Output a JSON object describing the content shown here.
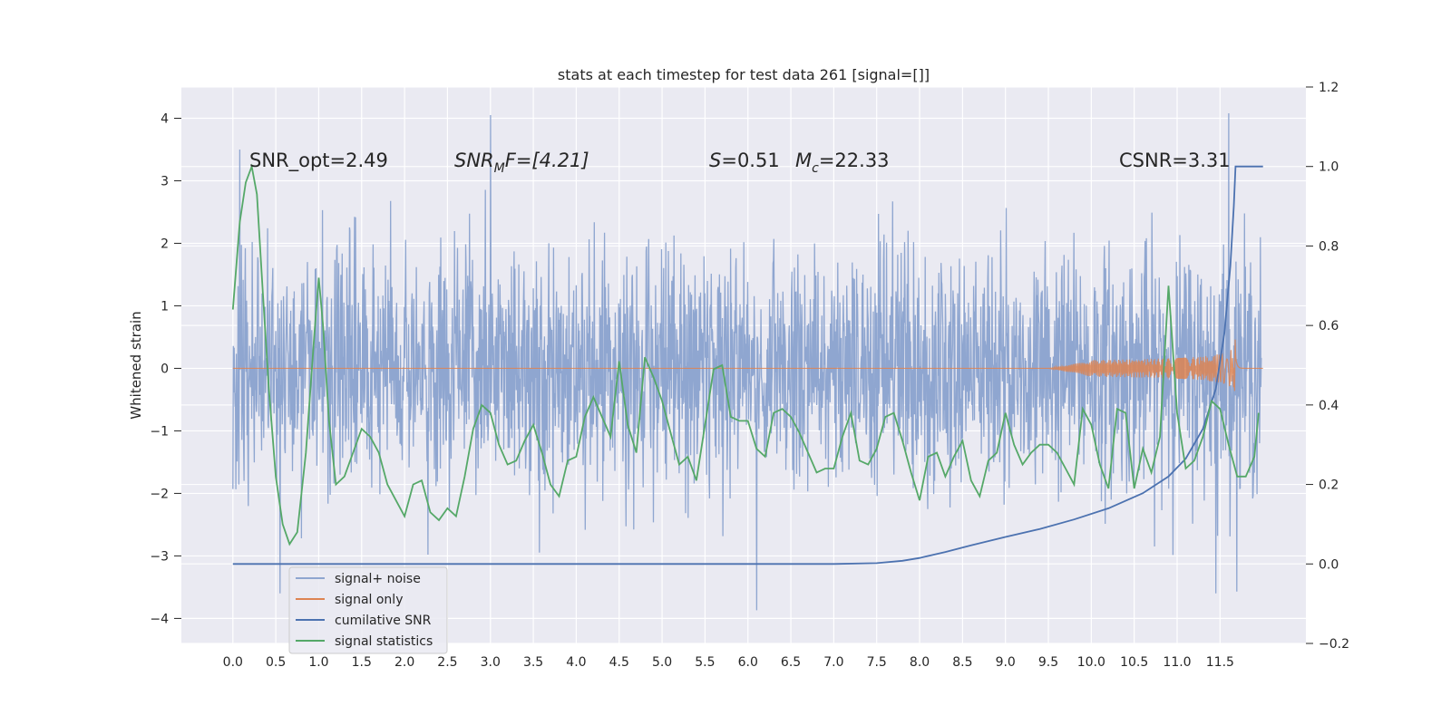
{
  "chart_data": {
    "type": "line",
    "title": "stats at each timestep for test data 261 [signal=[]]",
    "ylabel": "Whitened strain",
    "xlabel": "",
    "xlim": [
      -0.6,
      12.5
    ],
    "ylim": [
      -4.4,
      4.5
    ],
    "y2lim": [
      -0.2,
      1.2
    ],
    "grid": true,
    "legend_position": "lower-left",
    "xticks": [
      "0.0",
      "0.5",
      "1.0",
      "1.5",
      "2.0",
      "2.5",
      "3.0",
      "3.5",
      "4.0",
      "4.5",
      "5.0",
      "5.5",
      "6.0",
      "6.5",
      "7.0",
      "7.5",
      "8.0",
      "8.5",
      "9.0",
      "9.5",
      "10.0",
      "10.5",
      "11.0",
      "11.5"
    ],
    "yticks": [
      "4",
      "3",
      "2",
      "1",
      "0",
      "−1",
      "−2",
      "−3",
      "−4"
    ],
    "y2ticks": [
      "1.2",
      "1.0",
      "0.8",
      "0.6",
      "0.4",
      "0.2",
      "0.0",
      "−0.2"
    ],
    "annotations": {
      "snr_opt": "SNR_opt=2.49",
      "snr_mf_label": "SNR",
      "snr_mf_sub": "M",
      "snr_mf_tail": "F=[4.21]",
      "s_label": "S",
      "s_value": "=0.51",
      "mc_label": "M",
      "mc_sub": "c",
      "mc_value": "=22.33",
      "csnr": "CSNR=3.31"
    },
    "colors": {
      "noise": "#8fa6d0",
      "signal": "#dd8452",
      "csnr": "#4c72b0",
      "stats": "#55a868",
      "plot_bg": "#eaeaf2",
      "grid": "#ffffff"
    },
    "series": [
      {
        "name": "signal+ noise",
        "axis": "left",
        "description_points": "noisy whitened strain, roughly within [-2.5, 2.5] with spikes to about +4.1 and -3.9",
        "envelope": {
          "typical_max": 2.0,
          "typical_min": -1.8,
          "peak_max": 4.08,
          "peak_min": -3.87
        },
        "peaks": [
          {
            "x": 0.08,
            "y": 3.5
          },
          {
            "x": 3.0,
            "y": 4.05
          },
          {
            "x": 6.1,
            "y": -3.87
          },
          {
            "x": 11.6,
            "y": 4.08
          },
          {
            "x": 0.55,
            "y": -3.6
          },
          {
            "x": 11.45,
            "y": -3.6
          }
        ]
      },
      {
        "name": "signal only",
        "axis": "left",
        "chirp": {
          "x_start": 9.5,
          "x_merger": 11.68,
          "x_end": 12.0,
          "peak_amplitude": 0.6
        }
      },
      {
        "name": "cumilative SNR",
        "axis": "right",
        "x": [
          0.0,
          1.0,
          2.0,
          3.0,
          4.0,
          5.0,
          6.0,
          7.0,
          7.5,
          7.8,
          8.0,
          8.3,
          8.6,
          9.0,
          9.4,
          9.8,
          10.2,
          10.6,
          10.9,
          11.1,
          11.3,
          11.45,
          11.55,
          11.62,
          11.66,
          11.68,
          12.0
        ],
        "values": [
          0.0,
          0.0,
          0.0,
          0.0,
          0.0,
          0.0,
          0.0,
          0.0,
          0.002,
          0.008,
          0.015,
          0.03,
          0.047,
          0.068,
          0.088,
          0.112,
          0.14,
          0.178,
          0.22,
          0.265,
          0.34,
          0.44,
          0.58,
          0.75,
          0.9,
          1.0,
          1.0
        ]
      },
      {
        "name": "signal statistics",
        "axis": "right",
        "x": [
          0.0,
          0.08,
          0.15,
          0.22,
          0.28,
          0.35,
          0.42,
          0.5,
          0.58,
          0.66,
          0.75,
          0.85,
          0.95,
          1.0,
          1.05,
          1.12,
          1.2,
          1.3,
          1.4,
          1.5,
          1.6,
          1.7,
          1.8,
          1.9,
          2.0,
          2.1,
          2.2,
          2.3,
          2.4,
          2.5,
          2.6,
          2.7,
          2.8,
          2.9,
          3.0,
          3.1,
          3.2,
          3.3,
          3.4,
          3.5,
          3.6,
          3.7,
          3.8,
          3.9,
          4.0,
          4.1,
          4.2,
          4.3,
          4.4,
          4.5,
          4.6,
          4.7,
          4.8,
          4.9,
          5.0,
          5.1,
          5.2,
          5.3,
          5.4,
          5.5,
          5.6,
          5.7,
          5.8,
          5.9,
          6.0,
          6.1,
          6.2,
          6.3,
          6.4,
          6.5,
          6.6,
          6.7,
          6.8,
          6.9,
          7.0,
          7.1,
          7.2,
          7.3,
          7.4,
          7.5,
          7.6,
          7.7,
          7.8,
          7.9,
          8.0,
          8.1,
          8.2,
          8.3,
          8.4,
          8.5,
          8.6,
          8.7,
          8.8,
          8.9,
          9.0,
          9.1,
          9.2,
          9.3,
          9.4,
          9.5,
          9.6,
          9.7,
          9.8,
          9.9,
          10.0,
          10.1,
          10.2,
          10.3,
          10.4,
          10.5,
          10.6,
          10.7,
          10.8,
          10.9,
          11.0,
          11.1,
          11.2,
          11.3,
          11.4,
          11.5,
          11.6,
          11.7,
          11.8,
          11.9,
          11.95
        ],
        "values": [
          0.64,
          0.86,
          0.96,
          1.0,
          0.93,
          0.68,
          0.44,
          0.22,
          0.1,
          0.05,
          0.08,
          0.28,
          0.58,
          0.72,
          0.6,
          0.36,
          0.2,
          0.22,
          0.28,
          0.34,
          0.32,
          0.28,
          0.2,
          0.16,
          0.12,
          0.2,
          0.21,
          0.13,
          0.11,
          0.14,
          0.12,
          0.22,
          0.34,
          0.4,
          0.38,
          0.3,
          0.25,
          0.26,
          0.31,
          0.35,
          0.28,
          0.2,
          0.17,
          0.26,
          0.27,
          0.37,
          0.42,
          0.37,
          0.32,
          0.51,
          0.35,
          0.28,
          0.52,
          0.47,
          0.41,
          0.33,
          0.25,
          0.27,
          0.21,
          0.35,
          0.49,
          0.5,
          0.37,
          0.36,
          0.36,
          0.29,
          0.27,
          0.38,
          0.39,
          0.37,
          0.33,
          0.28,
          0.23,
          0.24,
          0.24,
          0.32,
          0.38,
          0.26,
          0.25,
          0.29,
          0.37,
          0.38,
          0.31,
          0.23,
          0.16,
          0.27,
          0.28,
          0.22,
          0.27,
          0.31,
          0.21,
          0.17,
          0.26,
          0.28,
          0.38,
          0.3,
          0.25,
          0.28,
          0.3,
          0.3,
          0.28,
          0.24,
          0.2,
          0.39,
          0.35,
          0.25,
          0.19,
          0.39,
          0.38,
          0.19,
          0.29,
          0.23,
          0.32,
          0.7,
          0.38,
          0.24,
          0.26,
          0.32,
          0.41,
          0.39,
          0.3,
          0.22,
          0.22,
          0.27,
          0.38
        ]
      }
    ]
  },
  "legend": {
    "items": [
      {
        "label": "signal+ noise"
      },
      {
        "label": "signal only"
      },
      {
        "label": "cumilative SNR"
      },
      {
        "label": "signal statistics"
      }
    ]
  }
}
